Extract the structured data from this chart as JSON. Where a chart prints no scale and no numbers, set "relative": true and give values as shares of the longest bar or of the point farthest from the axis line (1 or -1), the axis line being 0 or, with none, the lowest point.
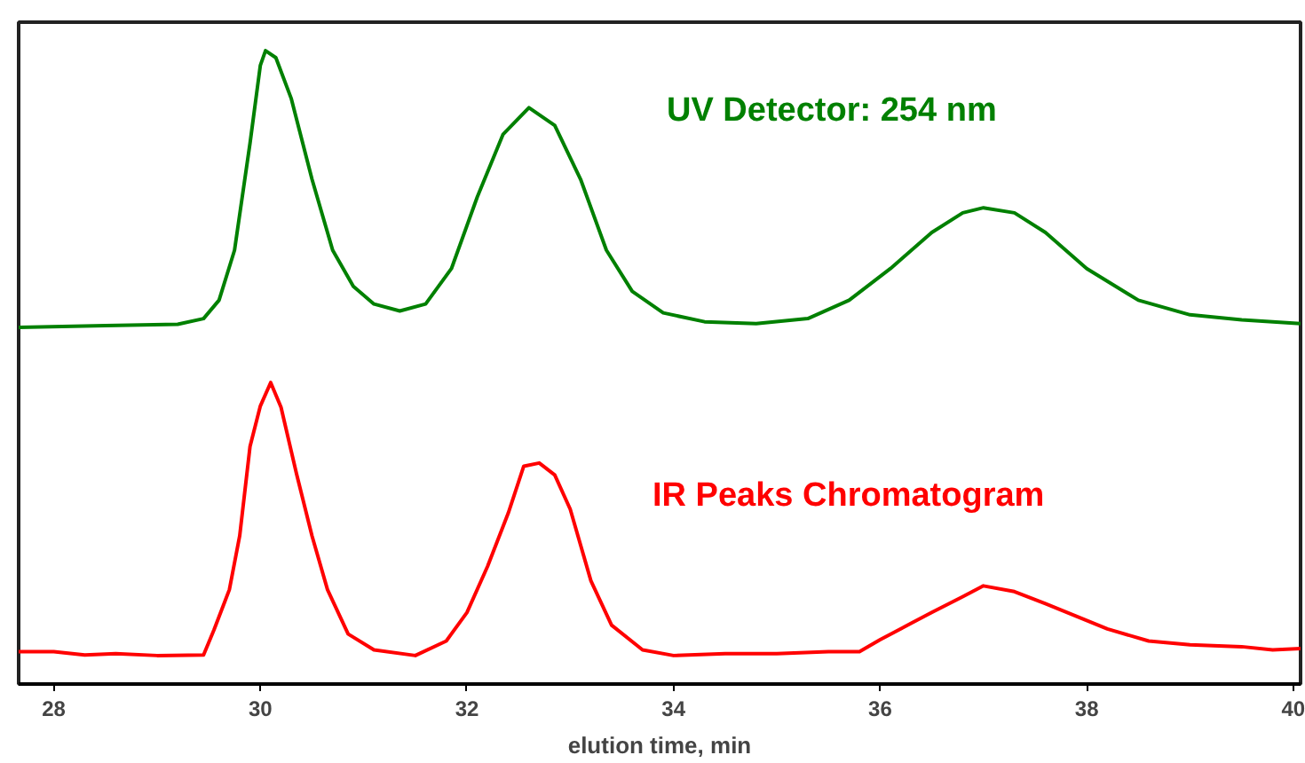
{
  "chart_data": {
    "type": "line",
    "relative": true,
    "xlabel": "elution time, min",
    "xlim": [
      27.66,
      40.07
    ],
    "xticks": [
      28,
      30,
      32,
      34,
      36,
      38,
      40
    ],
    "grid": false,
    "legend": false,
    "marker": "none",
    "line_style": "solid",
    "series": [
      {
        "name": "UV Detector: 254 nm",
        "color": "#008000",
        "x": [
          27.66,
          28.5,
          29.2,
          29.45,
          29.6,
          29.75,
          29.9,
          30.0,
          30.05,
          30.15,
          30.3,
          30.5,
          30.7,
          30.9,
          31.1,
          31.35,
          31.6,
          31.85,
          32.1,
          32.35,
          32.6,
          32.85,
          33.1,
          33.35,
          33.6,
          33.9,
          34.3,
          34.8,
          35.3,
          35.7,
          36.1,
          36.5,
          36.8,
          37.0,
          37.3,
          37.6,
          38.0,
          38.5,
          39.0,
          39.5,
          40.07
        ],
        "values": [
          0.563,
          0.566,
          0.568,
          0.577,
          0.606,
          0.685,
          0.854,
          0.977,
          1.0,
          0.989,
          0.924,
          0.797,
          0.685,
          0.628,
          0.6,
          0.589,
          0.6,
          0.656,
          0.769,
          0.868,
          0.91,
          0.882,
          0.797,
          0.685,
          0.62,
          0.586,
          0.572,
          0.569,
          0.577,
          0.606,
          0.656,
          0.713,
          0.744,
          0.752,
          0.744,
          0.713,
          0.656,
          0.606,
          0.583,
          0.575,
          0.569
        ]
      },
      {
        "name": "IR Peaks Chromatogram",
        "color": "#ff0000",
        "x": [
          27.66,
          28.0,
          28.3,
          28.6,
          29.0,
          29.45,
          29.55,
          29.7,
          29.8,
          29.9,
          30.0,
          30.1,
          30.2,
          30.35,
          30.5,
          30.65,
          30.85,
          31.1,
          31.5,
          31.8,
          32.0,
          32.2,
          32.4,
          32.55,
          32.7,
          32.85,
          33.0,
          33.2,
          33.4,
          33.7,
          34.0,
          34.5,
          35.0,
          35.5,
          35.8,
          36.0,
          36.3,
          36.5,
          36.8,
          37.0,
          37.3,
          37.6,
          37.9,
          38.2,
          38.6,
          39.0,
          39.5,
          39.8,
          40.07
        ],
        "values": [
          0.051,
          0.051,
          0.046,
          0.048,
          0.045,
          0.046,
          0.085,
          0.149,
          0.234,
          0.375,
          0.439,
          0.476,
          0.437,
          0.332,
          0.234,
          0.149,
          0.079,
          0.054,
          0.045,
          0.068,
          0.113,
          0.186,
          0.27,
          0.344,
          0.349,
          0.33,
          0.276,
          0.163,
          0.093,
          0.054,
          0.045,
          0.048,
          0.048,
          0.051,
          0.051,
          0.07,
          0.096,
          0.113,
          0.138,
          0.155,
          0.146,
          0.127,
          0.107,
          0.087,
          0.068,
          0.062,
          0.059,
          0.054,
          0.056
        ]
      }
    ]
  }
}
